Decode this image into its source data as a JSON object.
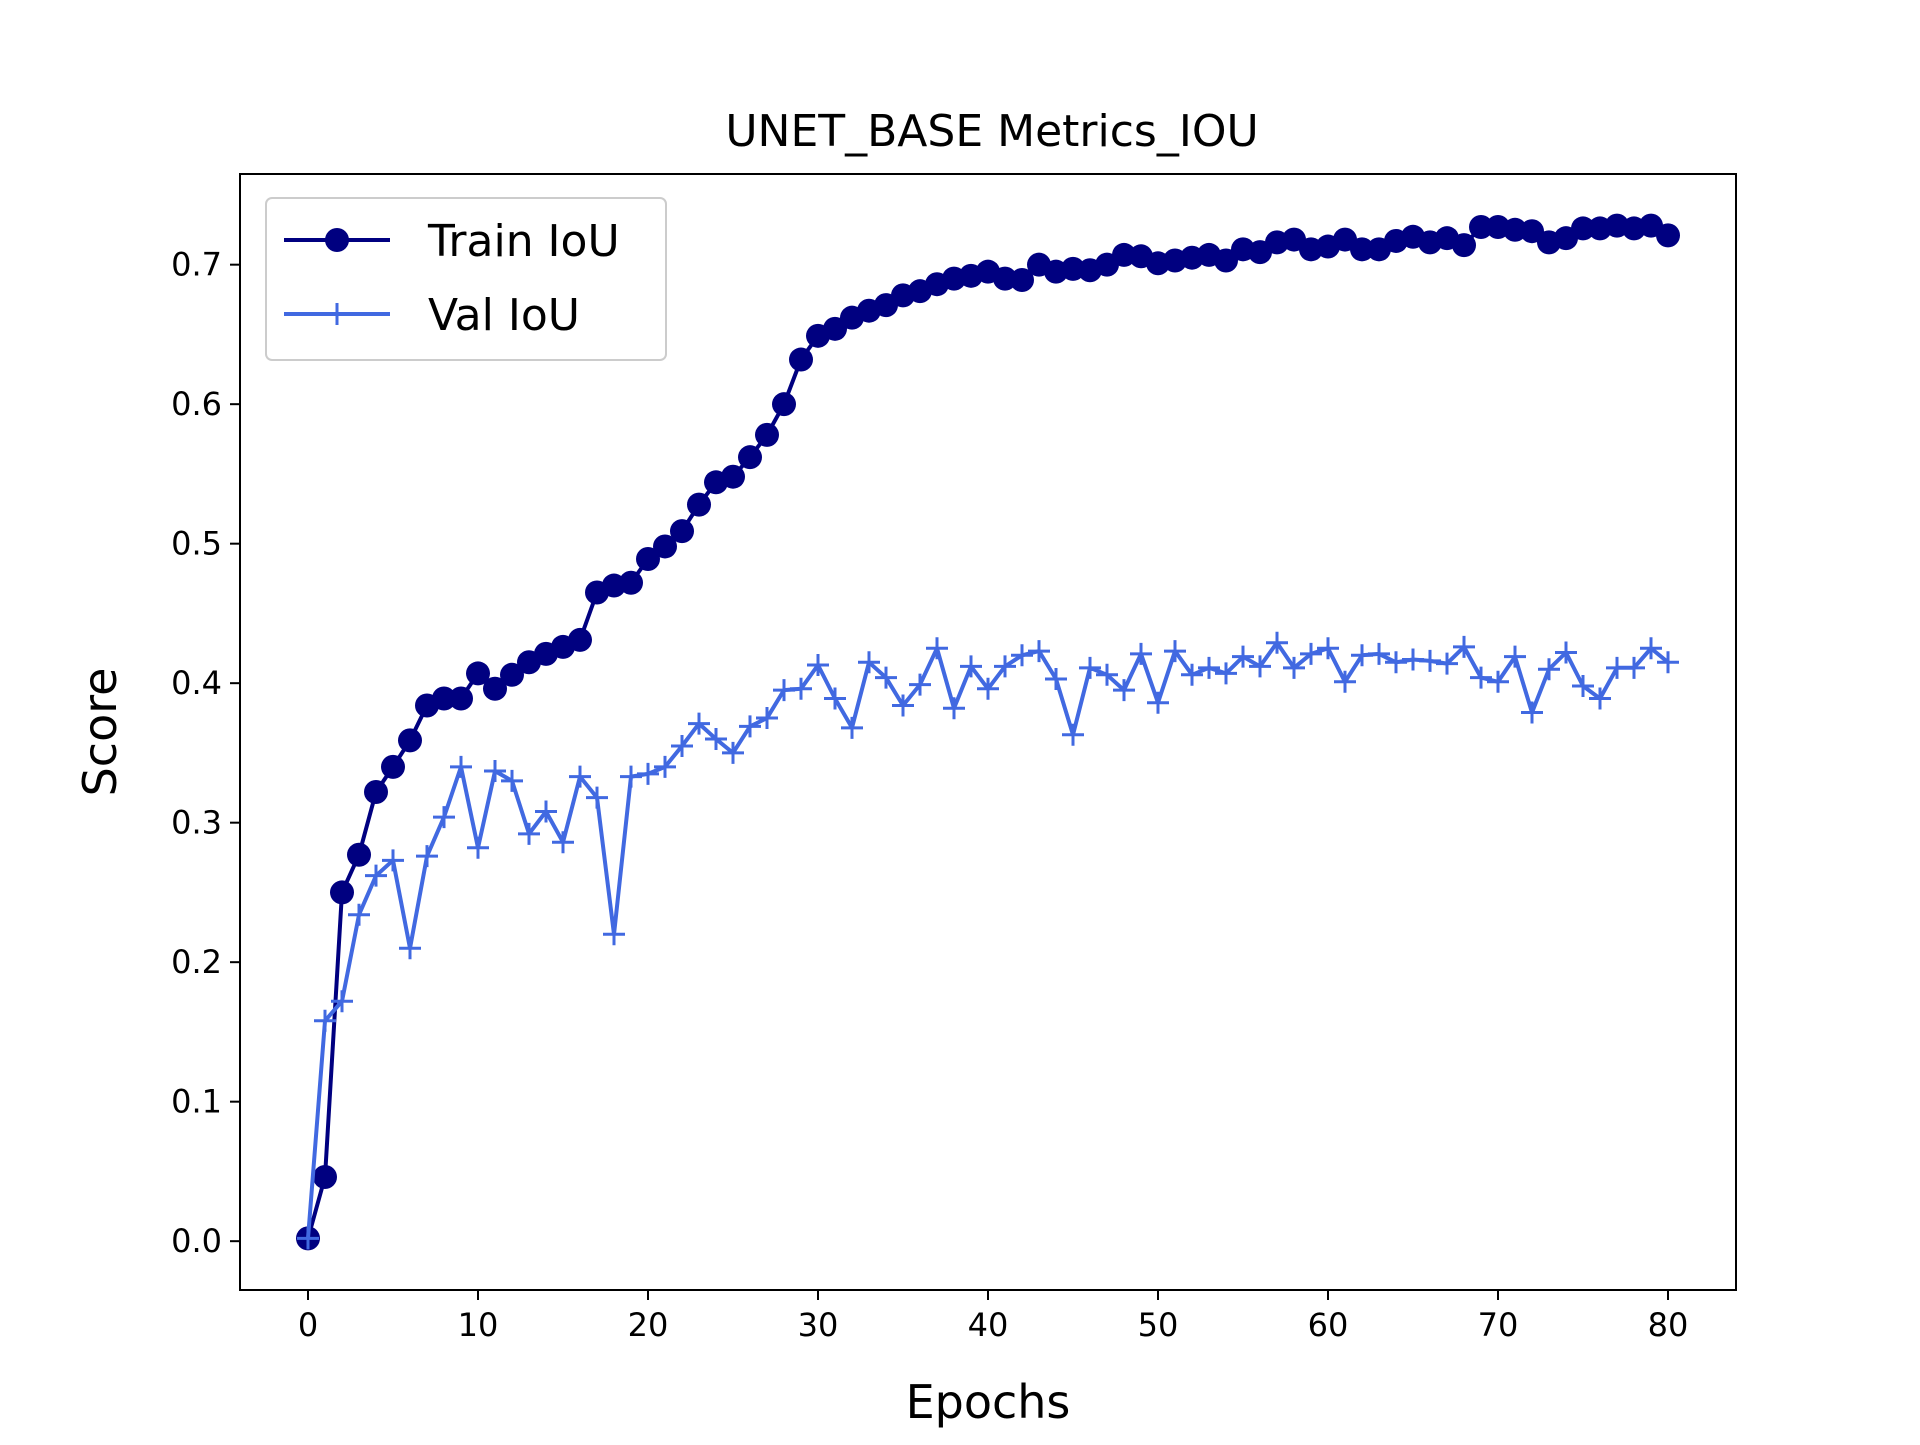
{
  "chart_data": {
    "type": "line",
    "title": "UNET_BASE Metrics_IOU",
    "xlabel": "Epochs",
    "ylabel": "Score",
    "xlim": [
      -4,
      84
    ],
    "ylim": [
      -0.035,
      0.765
    ],
    "x_ticks": [
      0,
      10,
      20,
      30,
      40,
      50,
      60,
      70,
      80
    ],
    "y_ticks": [
      0.0,
      0.1,
      0.2,
      0.3,
      0.4,
      0.5,
      0.6,
      0.7
    ],
    "x_tick_labels": [
      "0",
      "10",
      "20",
      "30",
      "40",
      "50",
      "60",
      "70",
      "80"
    ],
    "y_tick_labels": [
      "0.0",
      "0.1",
      "0.2",
      "0.3",
      "0.4",
      "0.5",
      "0.6",
      "0.7"
    ],
    "grid": false,
    "legend_position": "upper-left",
    "x": [
      0,
      1,
      2,
      3,
      4,
      5,
      6,
      7,
      8,
      9,
      10,
      11,
      12,
      13,
      14,
      15,
      16,
      17,
      18,
      19,
      20,
      21,
      22,
      23,
      24,
      25,
      26,
      27,
      28,
      29,
      30,
      31,
      32,
      33,
      34,
      35,
      36,
      37,
      38,
      39,
      40,
      41,
      42,
      43,
      44,
      45,
      46,
      47,
      48,
      49,
      50,
      51,
      52,
      53,
      54,
      55,
      56,
      57,
      58,
      59,
      60,
      61,
      62,
      63,
      64,
      65,
      66,
      67,
      68,
      69,
      70,
      71,
      72,
      73,
      74,
      75,
      76,
      77,
      78,
      79,
      80
    ],
    "series": [
      {
        "name": "Train IoU",
        "color": "#000080",
        "marker": "circle",
        "values": [
          0.002,
          0.046,
          0.25,
          0.277,
          0.322,
          0.34,
          0.359,
          0.384,
          0.389,
          0.389,
          0.407,
          0.396,
          0.406,
          0.415,
          0.421,
          0.426,
          0.431,
          0.465,
          0.47,
          0.472,
          0.489,
          0.498,
          0.509,
          0.528,
          0.544,
          0.548,
          0.562,
          0.578,
          0.6,
          0.632,
          0.649,
          0.654,
          0.662,
          0.667,
          0.671,
          0.678,
          0.681,
          0.686,
          0.69,
          0.692,
          0.695,
          0.69,
          0.689,
          0.7,
          0.695,
          0.697,
          0.696,
          0.7,
          0.707,
          0.706,
          0.701,
          0.703,
          0.705,
          0.707,
          0.703,
          0.711,
          0.709,
          0.716,
          0.718,
          0.711,
          0.713,
          0.718,
          0.711,
          0.711,
          0.717,
          0.72,
          0.716,
          0.719,
          0.714,
          0.727,
          0.727,
          0.725,
          0.724,
          0.716,
          0.719,
          0.726,
          0.726,
          0.728,
          0.726,
          0.728,
          0.721
        ]
      },
      {
        "name": "Val IoU",
        "color": "#4169E1",
        "marker": "plus",
        "values": [
          0.002,
          0.158,
          0.172,
          0.234,
          0.262,
          0.273,
          0.21,
          0.276,
          0.304,
          0.34,
          0.282,
          0.337,
          0.33,
          0.292,
          0.308,
          0.286,
          0.333,
          0.318,
          0.22,
          0.333,
          0.335,
          0.34,
          0.355,
          0.371,
          0.36,
          0.35,
          0.369,
          0.375,
          0.395,
          0.396,
          0.413,
          0.389,
          0.368,
          0.415,
          0.404,
          0.384,
          0.399,
          0.425,
          0.382,
          0.412,
          0.396,
          0.412,
          0.42,
          0.423,
          0.403,
          0.363,
          0.411,
          0.406,
          0.395,
          0.421,
          0.386,
          0.423,
          0.406,
          0.411,
          0.407,
          0.419,
          0.412,
          0.429,
          0.411,
          0.421,
          0.425,
          0.401,
          0.42,
          0.421,
          0.415,
          0.417,
          0.416,
          0.414,
          0.426,
          0.404,
          0.401,
          0.419,
          0.379,
          0.41,
          0.422,
          0.398,
          0.389,
          0.411,
          0.411,
          0.425,
          0.415
        ]
      }
    ]
  }
}
